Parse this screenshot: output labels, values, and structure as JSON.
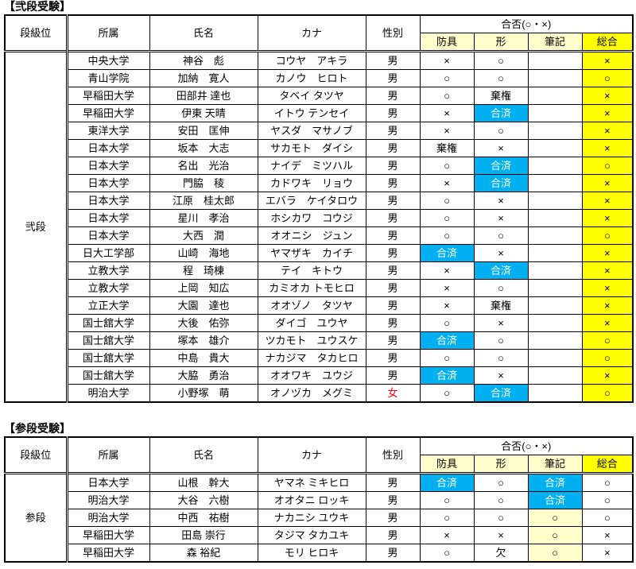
{
  "colors": {
    "pass_done_blue": "#00B0F0",
    "overall_yellow": "#FFFF00",
    "subheader_cream": "#FFFFCC",
    "female_red": "#FF0000"
  },
  "columns": {
    "rank": "段級位",
    "affiliation": "所属",
    "name": "氏名",
    "kana": "カナ",
    "gender": "性別",
    "result_group": "合否(○・×)",
    "bogu": "防具",
    "kata": "形",
    "written": "筆記",
    "overall": "総合"
  },
  "tables": [
    {
      "title": "【弐段受験】",
      "rank": "弐段",
      "rows": [
        {
          "affiliation": "中央大学",
          "name": "神谷　彪",
          "kana": "コウヤ　アキラ",
          "gender": {
            "v": "男",
            "s": "plain"
          },
          "results": [
            {
              "v": "×",
              "s": "plain"
            },
            {
              "v": "○",
              "s": "plain"
            },
            {
              "v": "",
              "s": "plain"
            },
            {
              "v": "×",
              "s": "yellow"
            }
          ]
        },
        {
          "affiliation": "青山学院",
          "name": "加納　寛人",
          "kana": "カノウ　ヒロト",
          "gender": {
            "v": "男",
            "s": "plain"
          },
          "results": [
            {
              "v": "○",
              "s": "plain"
            },
            {
              "v": "○",
              "s": "plain"
            },
            {
              "v": "",
              "s": "plain"
            },
            {
              "v": "○",
              "s": "yellow"
            }
          ]
        },
        {
          "affiliation": "早稲田大学",
          "name": "田部井 達也",
          "kana": "タベイ タツヤ",
          "gender": {
            "v": "男",
            "s": "plain"
          },
          "results": [
            {
              "v": "○",
              "s": "plain"
            },
            {
              "v": "棄権",
              "s": "plain"
            },
            {
              "v": "",
              "s": "plain"
            },
            {
              "v": "×",
              "s": "yellow"
            }
          ]
        },
        {
          "affiliation": "早稲田大学",
          "name": "伊東 天晴",
          "kana": "イトウ テンセイ",
          "gender": {
            "v": "男",
            "s": "plain"
          },
          "results": [
            {
              "v": "×",
              "s": "plain"
            },
            {
              "v": "合済",
              "s": "blue"
            },
            {
              "v": "",
              "s": "plain"
            },
            {
              "v": "×",
              "s": "yellow"
            }
          ]
        },
        {
          "affiliation": "東洋大学",
          "name": "安田　匡伸",
          "kana": "ヤスダ　マサノブ",
          "gender": {
            "v": "男",
            "s": "plain"
          },
          "results": [
            {
              "v": "×",
              "s": "plain"
            },
            {
              "v": "○",
              "s": "plain"
            },
            {
              "v": "",
              "s": "plain"
            },
            {
              "v": "×",
              "s": "yellow"
            }
          ]
        },
        {
          "affiliation": "日本大学",
          "name": "坂本　大志",
          "kana": "サカモト　ダイシ",
          "gender": {
            "v": "男",
            "s": "plain"
          },
          "results": [
            {
              "v": "棄権",
              "s": "plain"
            },
            {
              "v": "×",
              "s": "plain"
            },
            {
              "v": "",
              "s": "plain"
            },
            {
              "v": "×",
              "s": "yellow"
            }
          ]
        },
        {
          "affiliation": "日本大学",
          "name": "名出　光治",
          "kana": "ナイデ　ミツハル",
          "gender": {
            "v": "男",
            "s": "plain"
          },
          "results": [
            {
              "v": "○",
              "s": "plain"
            },
            {
              "v": "合済",
              "s": "blue"
            },
            {
              "v": "",
              "s": "plain"
            },
            {
              "v": "○",
              "s": "yellow"
            }
          ]
        },
        {
          "affiliation": "日本大学",
          "name": "門脇　稜",
          "kana": "カドワキ　リョウ",
          "gender": {
            "v": "男",
            "s": "plain"
          },
          "results": [
            {
              "v": "×",
              "s": "plain"
            },
            {
              "v": "合済",
              "s": "blue"
            },
            {
              "v": "",
              "s": "plain"
            },
            {
              "v": "×",
              "s": "yellow"
            }
          ]
        },
        {
          "affiliation": "日本大学",
          "name": "江原　桂太郎",
          "kana": "エバラ　ケイタロウ",
          "gender": {
            "v": "男",
            "s": "plain"
          },
          "results": [
            {
              "v": "○",
              "s": "plain"
            },
            {
              "v": "×",
              "s": "plain"
            },
            {
              "v": "",
              "s": "plain"
            },
            {
              "v": "×",
              "s": "yellow"
            }
          ]
        },
        {
          "affiliation": "日本大学",
          "name": "星川　孝治",
          "kana": "ホシカワ　コウジ",
          "gender": {
            "v": "男",
            "s": "plain"
          },
          "results": [
            {
              "v": "○",
              "s": "plain"
            },
            {
              "v": "×",
              "s": "plain"
            },
            {
              "v": "",
              "s": "plain"
            },
            {
              "v": "×",
              "s": "yellow"
            }
          ]
        },
        {
          "affiliation": "日本大学",
          "name": "大西　潤",
          "kana": "オオニシ　ジュン",
          "gender": {
            "v": "男",
            "s": "plain"
          },
          "results": [
            {
              "v": "○",
              "s": "plain"
            },
            {
              "v": "○",
              "s": "plain"
            },
            {
              "v": "",
              "s": "plain"
            },
            {
              "v": "○",
              "s": "yellow"
            }
          ]
        },
        {
          "affiliation": "日大工学部",
          "name": "山崎　海地",
          "kana": "ヤマザキ　カイチ",
          "gender": {
            "v": "男",
            "s": "plain"
          },
          "results": [
            {
              "v": "合済",
              "s": "blue"
            },
            {
              "v": "×",
              "s": "plain"
            },
            {
              "v": "",
              "s": "plain"
            },
            {
              "v": "×",
              "s": "yellow"
            }
          ]
        },
        {
          "affiliation": "立教大学",
          "name": "程　琦棟",
          "kana": "テイ　キトウ",
          "gender": {
            "v": "男",
            "s": "plain"
          },
          "results": [
            {
              "v": "×",
              "s": "plain"
            },
            {
              "v": "合済",
              "s": "blue"
            },
            {
              "v": "",
              "s": "plain"
            },
            {
              "v": "×",
              "s": "yellow"
            }
          ]
        },
        {
          "affiliation": "立教大学",
          "name": "上岡　知広",
          "kana": "カミオカ トモヒロ",
          "gender": {
            "v": "男",
            "s": "plain"
          },
          "results": [
            {
              "v": "×",
              "s": "plain"
            },
            {
              "v": "○",
              "s": "plain"
            },
            {
              "v": "",
              "s": "plain"
            },
            {
              "v": "×",
              "s": "yellow"
            }
          ]
        },
        {
          "affiliation": "立正大学",
          "name": "大園　達也",
          "kana": "オオゾノ　タツヤ",
          "gender": {
            "v": "男",
            "s": "plain"
          },
          "results": [
            {
              "v": "×",
              "s": "plain"
            },
            {
              "v": "棄権",
              "s": "plain"
            },
            {
              "v": "",
              "s": "plain"
            },
            {
              "v": "×",
              "s": "yellow"
            }
          ]
        },
        {
          "affiliation": "国士舘大学",
          "name": "大後　佑弥",
          "kana": "ダイゴ　ユウヤ",
          "gender": {
            "v": "男",
            "s": "plain"
          },
          "results": [
            {
              "v": "○",
              "s": "plain"
            },
            {
              "v": "×",
              "s": "plain"
            },
            {
              "v": "",
              "s": "plain"
            },
            {
              "v": "×",
              "s": "yellow"
            }
          ]
        },
        {
          "affiliation": "国士舘大学",
          "name": "塚本　雄介",
          "kana": "ツカモト　ユウスケ",
          "gender": {
            "v": "男",
            "s": "plain"
          },
          "results": [
            {
              "v": "合済",
              "s": "blue"
            },
            {
              "v": "○",
              "s": "plain"
            },
            {
              "v": "",
              "s": "plain"
            },
            {
              "v": "○",
              "s": "yellow"
            }
          ]
        },
        {
          "affiliation": "国士舘大学",
          "name": "中島　貴大",
          "kana": "ナカジマ　タカヒロ",
          "gender": {
            "v": "男",
            "s": "plain"
          },
          "results": [
            {
              "v": "○",
              "s": "plain"
            },
            {
              "v": "○",
              "s": "plain"
            },
            {
              "v": "",
              "s": "plain"
            },
            {
              "v": "○",
              "s": "yellow"
            }
          ]
        },
        {
          "affiliation": "国士舘大学",
          "name": "大脇　勇治",
          "kana": "オオワキ　ユウジ",
          "gender": {
            "v": "男",
            "s": "plain"
          },
          "results": [
            {
              "v": "合済",
              "s": "blue"
            },
            {
              "v": "×",
              "s": "plain"
            },
            {
              "v": "",
              "s": "plain"
            },
            {
              "v": "×",
              "s": "yellow"
            }
          ]
        },
        {
          "affiliation": "明治大学",
          "name": "小野塚　萌",
          "kana": "オノヅカ　メグミ",
          "gender": {
            "v": "女",
            "s": "red"
          },
          "results": [
            {
              "v": "○",
              "s": "plain"
            },
            {
              "v": "合済",
              "s": "blue"
            },
            {
              "v": "",
              "s": "plain"
            },
            {
              "v": "○",
              "s": "yellow"
            }
          ]
        }
      ]
    },
    {
      "title": "【参段受験】",
      "rank": "参段",
      "rows": [
        {
          "affiliation": "日本大学",
          "name": "山根　幹大",
          "kana": "ヤマネ ミキヒロ",
          "gender": {
            "v": "男",
            "s": "plain"
          },
          "results": [
            {
              "v": "合済",
              "s": "blue"
            },
            {
              "v": "○",
              "s": "plain"
            },
            {
              "v": "合済",
              "s": "blue"
            },
            {
              "v": "○",
              "s": "plain"
            }
          ]
        },
        {
          "affiliation": "明治大学",
          "name": "大谷　六樹",
          "kana": "オオタニ ロッキ",
          "gender": {
            "v": "男",
            "s": "plain"
          },
          "results": [
            {
              "v": "○",
              "s": "plain"
            },
            {
              "v": "○",
              "s": "plain"
            },
            {
              "v": "合済",
              "s": "blue"
            },
            {
              "v": "○",
              "s": "plain"
            }
          ]
        },
        {
          "affiliation": "明治大学",
          "name": "中西　祐樹",
          "kana": "ナカニシ ユウキ",
          "gender": {
            "v": "男",
            "s": "plain"
          },
          "results": [
            {
              "v": "○",
              "s": "plain"
            },
            {
              "v": "○",
              "s": "plain"
            },
            {
              "v": "○",
              "s": "cream"
            },
            {
              "v": "○",
              "s": "plain"
            }
          ]
        },
        {
          "affiliation": "早稲田大学",
          "name": "田島 崇行",
          "kana": "タジマ タカユキ",
          "gender": {
            "v": "男",
            "s": "plain"
          },
          "results": [
            {
              "v": "×",
              "s": "plain"
            },
            {
              "v": "×",
              "s": "plain"
            },
            {
              "v": "○",
              "s": "cream"
            },
            {
              "v": "×",
              "s": "plain"
            }
          ]
        },
        {
          "affiliation": "早稲田大学",
          "name": "森 裕紀",
          "kana": "モリ ヒロキ",
          "gender": {
            "v": "男",
            "s": "plain"
          },
          "results": [
            {
              "v": "○",
              "s": "plain"
            },
            {
              "v": "欠",
              "s": "plain"
            },
            {
              "v": "○",
              "s": "cream"
            },
            {
              "v": "×",
              "s": "plain"
            }
          ]
        }
      ]
    }
  ]
}
